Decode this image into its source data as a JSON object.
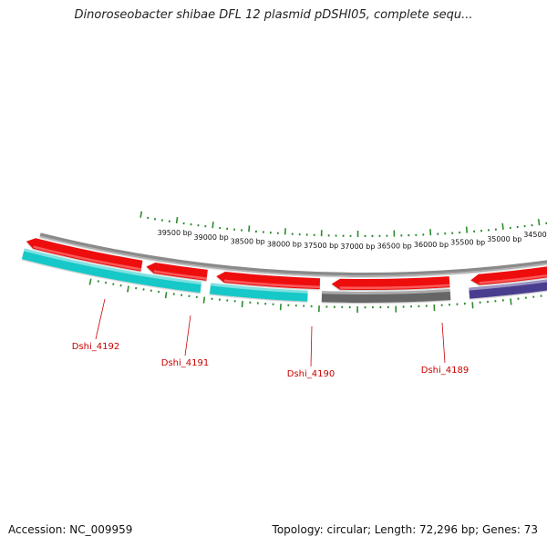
{
  "title": "Dinoroseobacter shibae DFL 12 plasmid pDSHI05, complete sequ...",
  "accession": "Accession: NC_009959",
  "summary": "Topology: circular; Length: 72,296 bp; Genes: 73",
  "ticks": [
    "39500 bp",
    "39000 bp",
    "38500 bp",
    "38000 bp",
    "37500 bp",
    "37000 bp",
    "36500 bp",
    "36000 bp",
    "35500 bp",
    "35000 bp",
    "34500 bp"
  ],
  "genes": [
    {
      "label": "Dshi_4192",
      "color": "#18c8c8"
    },
    {
      "label": "Dshi_4191",
      "color": "#18c8c8"
    },
    {
      "label": "Dshi_4190",
      "color": "#666666"
    },
    {
      "label": "Dshi_4189",
      "color": "#4a3d8f"
    }
  ],
  "colors": {
    "backbone": "#8a8a8a",
    "forward_strand": "#ee1111",
    "tick": "#2e8b2e",
    "gene_label": "#cc0000"
  }
}
